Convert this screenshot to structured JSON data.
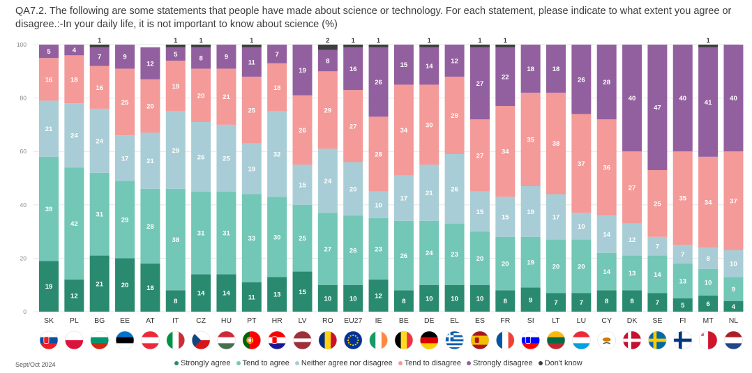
{
  "title": "QA7.2. The following are some statements that people have made about science or technology. For each statement, please indicate to what extent you agree or disagree.:-In your daily life, it is not important to know about science (%)",
  "source": "Sept/Oct 2024",
  "colors": {
    "strongly_agree": "#2a8a70",
    "tend_to_agree": "#72c7b6",
    "neither": "#a8cdd6",
    "tend_to_disagree": "#f49a98",
    "strongly_disagree": "#93609f",
    "dont_know": "#3d3d3d"
  },
  "chart_data": {
    "type": "bar",
    "stacked": true,
    "title": "In your daily life, it is not important to know about science (%)",
    "ylim": [
      0,
      100
    ],
    "yticks": [
      0,
      20,
      40,
      60,
      80,
      100
    ],
    "legend_position": "bottom",
    "categories": [
      "SK",
      "PL",
      "BG",
      "EE",
      "AT",
      "IT",
      "CZ",
      "HU",
      "PT",
      "HR",
      "LV",
      "RO",
      "EU27",
      "IE",
      "BE",
      "DE",
      "EL",
      "ES",
      "FR",
      "SI",
      "LT",
      "LU",
      "CY",
      "DK",
      "SE",
      "FI",
      "MT",
      "NL"
    ],
    "series": [
      {
        "name": "Strongly agree",
        "key": "strongly_agree",
        "values": [
          19,
          12,
          21,
          20,
          18,
          8,
          14,
          14,
          11,
          13,
          15,
          10,
          10,
          12,
          8,
          10,
          10,
          10,
          8,
          9,
          7,
          7,
          8,
          8,
          7,
          5,
          6,
          4
        ]
      },
      {
        "name": "Tend to agree",
        "key": "tend_to_agree",
        "values": [
          39,
          42,
          31,
          29,
          28,
          38,
          31,
          31,
          33,
          30,
          25,
          27,
          26,
          23,
          26,
          24,
          23,
          20,
          20,
          19,
          20,
          20,
          14,
          13,
          14,
          13,
          10,
          9
        ]
      },
      {
        "name": "Neither agree nor disagree",
        "key": "neither",
        "values": [
          21,
          24,
          24,
          17,
          21,
          29,
          26,
          25,
          19,
          32,
          15,
          24,
          20,
          10,
          17,
          21,
          26,
          15,
          15,
          19,
          17,
          10,
          14,
          12,
          7,
          7,
          8,
          10
        ]
      },
      {
        "name": "Tend to disagree",
        "key": "tend_to_disagree",
        "values": [
          16,
          18,
          16,
          25,
          20,
          19,
          20,
          21,
          25,
          18,
          26,
          29,
          27,
          28,
          34,
          30,
          29,
          27,
          34,
          35,
          38,
          37,
          36,
          27,
          25,
          35,
          34,
          37
        ]
      },
      {
        "name": "Strongly disagree",
        "key": "strongly_disagree",
        "values": [
          5,
          4,
          7,
          9,
          12,
          5,
          8,
          9,
          11,
          7,
          19,
          8,
          16,
          26,
          15,
          14,
          12,
          27,
          22,
          18,
          18,
          26,
          28,
          40,
          47,
          40,
          41,
          40
        ]
      },
      {
        "name": "Don't know",
        "key": "dont_know",
        "values": [
          0,
          0,
          1,
          0,
          0,
          1,
          1,
          0,
          1,
          0,
          0,
          2,
          1,
          1,
          0,
          1,
          0,
          1,
          1,
          0,
          0,
          0,
          0,
          0,
          0,
          0,
          1,
          0
        ]
      }
    ]
  },
  "flags": {
    "SK": "Slovakia flag",
    "PL": "Poland flag",
    "BG": "Bulgaria flag",
    "EE": "Estonia flag",
    "AT": "Austria flag",
    "IT": "Italy flag",
    "CZ": "Czechia flag",
    "HU": "Hungary flag",
    "PT": "Portugal flag",
    "HR": "Croatia flag",
    "LV": "Latvia flag",
    "RO": "Romania flag",
    "EU27": "EU flag",
    "IE": "Ireland flag",
    "BE": "Belgium flag",
    "DE": "Germany flag",
    "EL": "Greece flag",
    "ES": "Spain flag",
    "FR": "France flag",
    "SI": "Slovenia flag",
    "LT": "Lithuania flag",
    "LU": "Luxembourg flag",
    "CY": "Cyprus flag",
    "DK": "Denmark flag",
    "SE": "Sweden flag",
    "FI": "Finland flag",
    "MT": "Malta flag",
    "NL": "Netherlands flag"
  }
}
